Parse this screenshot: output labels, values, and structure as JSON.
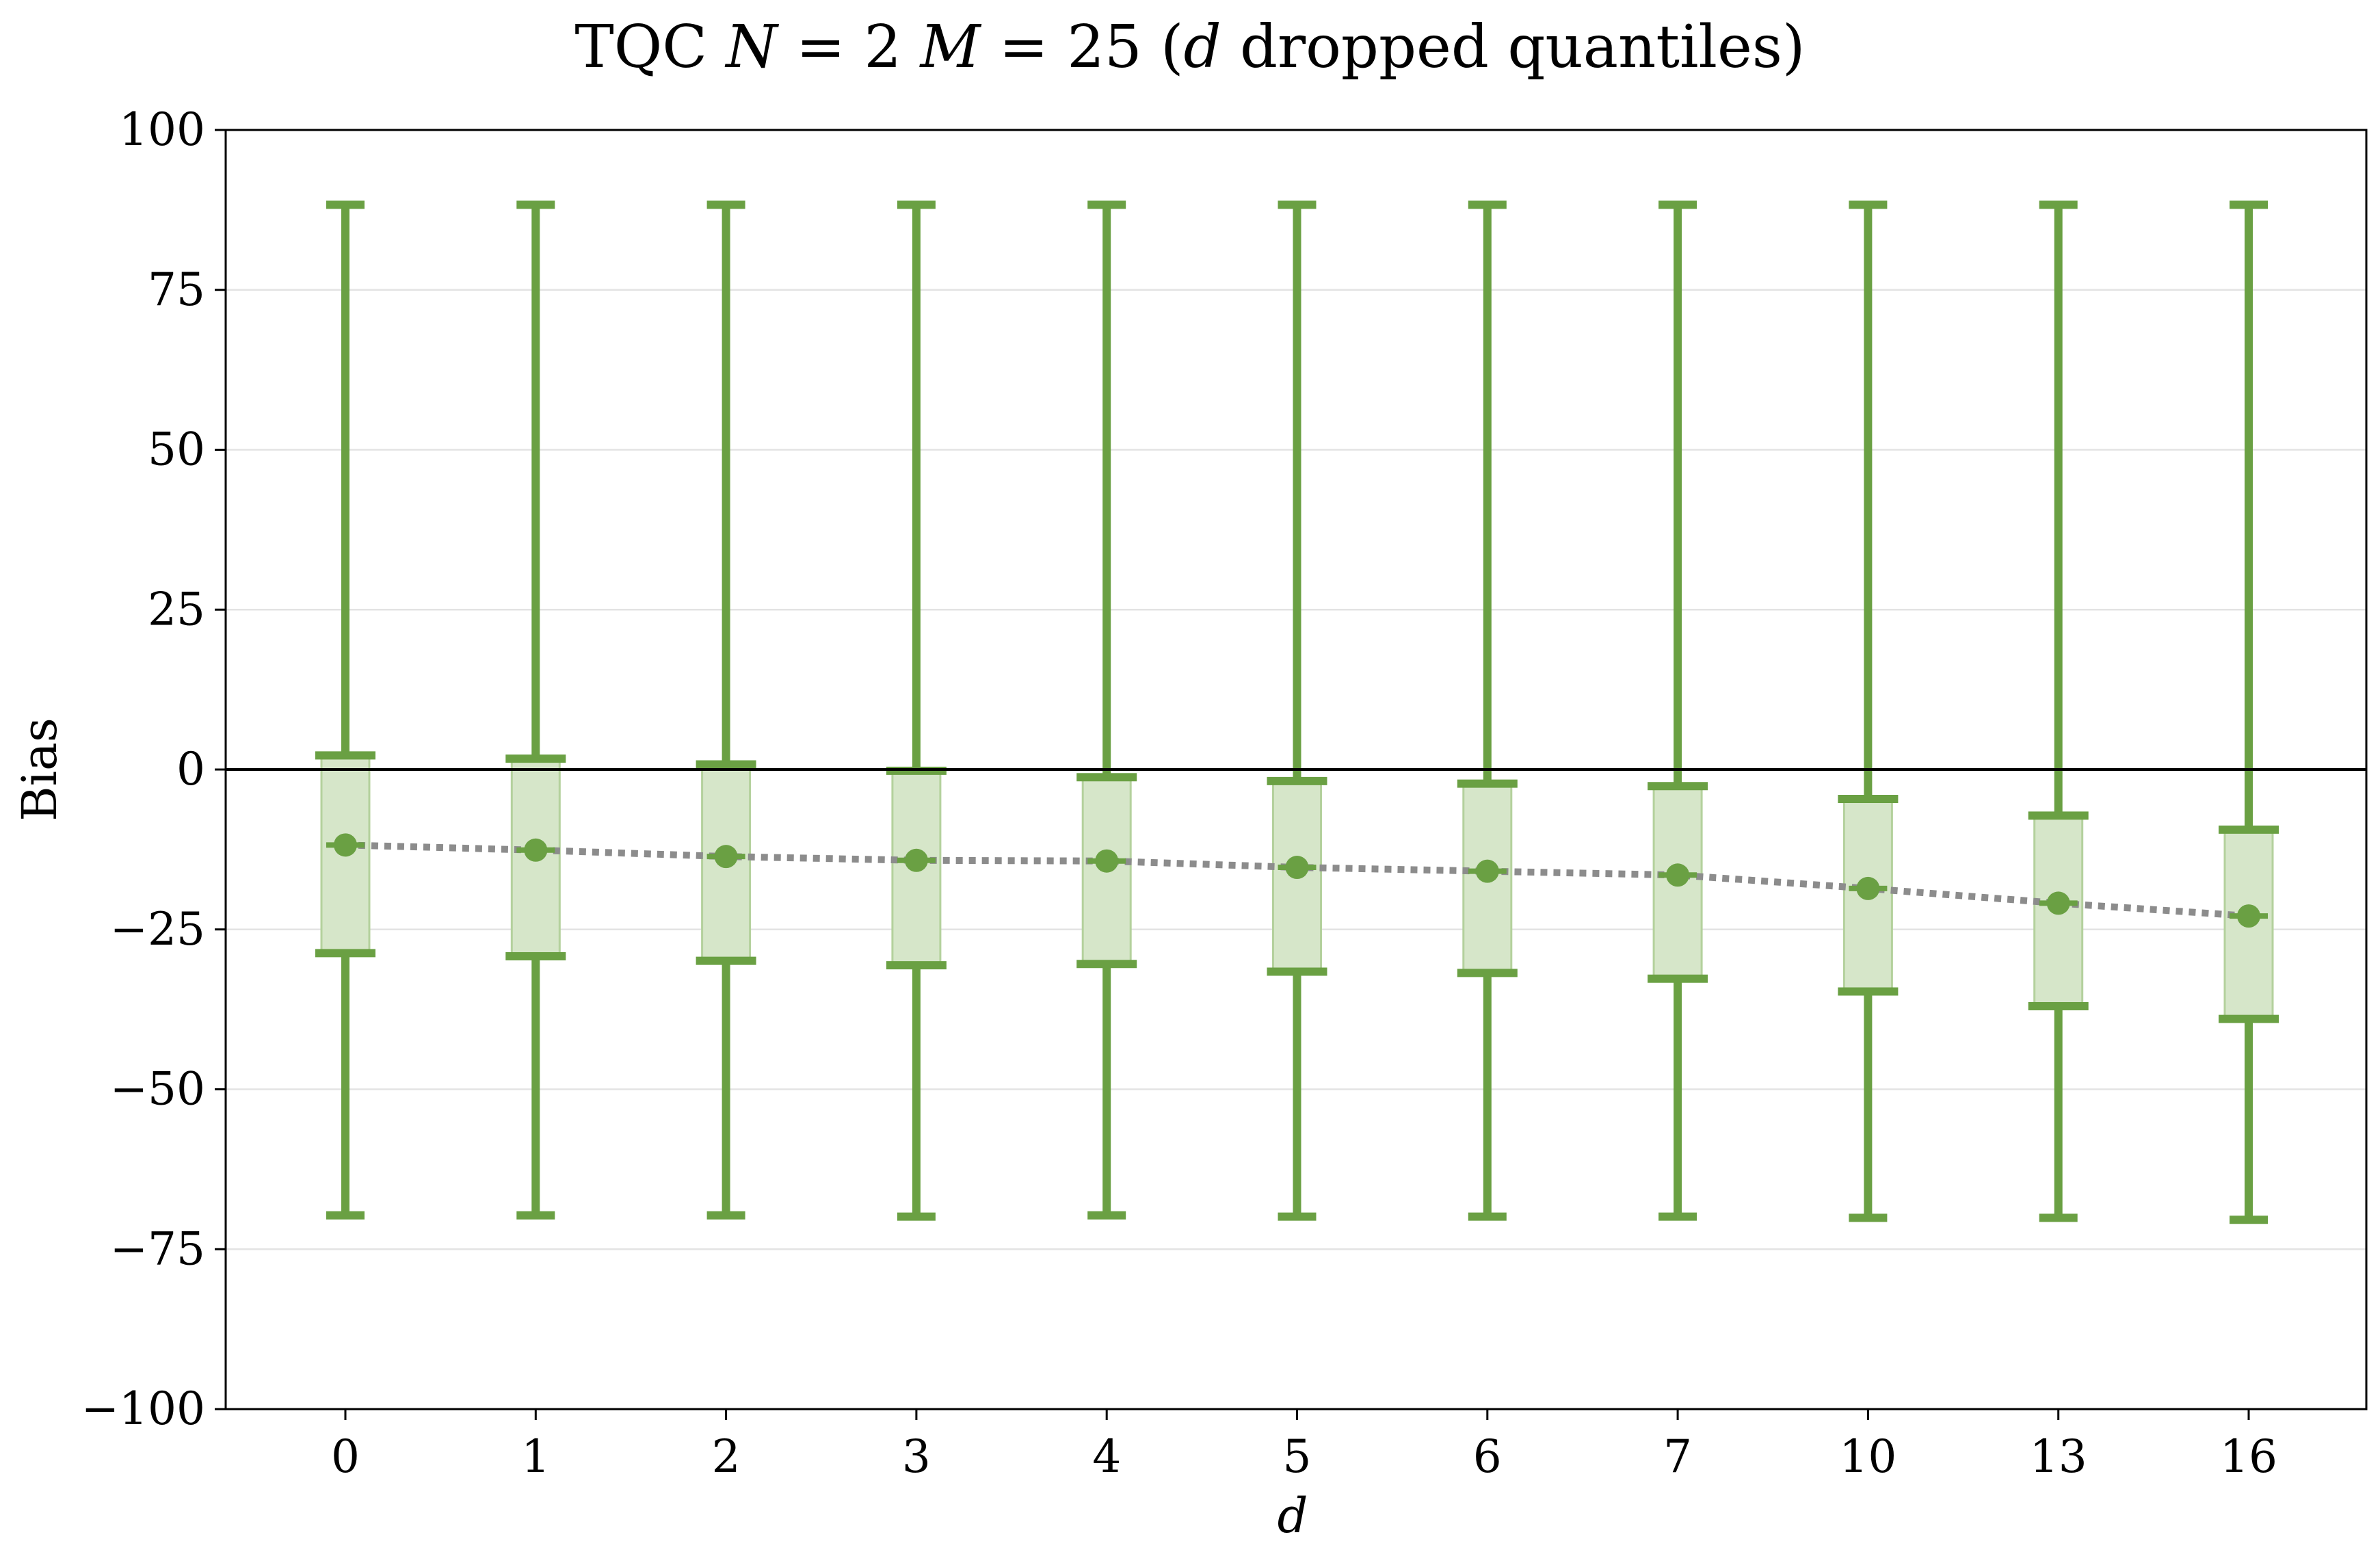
{
  "chart_data": {
    "type": "box",
    "title": "TQC N = 2 M = 25 (d dropped quantiles)",
    "title_parts": {
      "prefix": "TQC ",
      "n_var": "N",
      "n_rest": " = 2 ",
      "m_var": "M",
      "m_rest": " = 25 (",
      "d_var": "d",
      "suffix": " dropped quantiles)"
    },
    "xlabel": "d",
    "ylabel": "Bias",
    "ylim": [
      -100,
      100
    ],
    "yticks": [
      -100,
      -75,
      -50,
      -25,
      0,
      25,
      50,
      75,
      100
    ],
    "ytick_labels": [
      "−100",
      "−75",
      "−50",
      "−25",
      "0",
      "25",
      "50",
      "75",
      "100"
    ],
    "categories": [
      "0",
      "1",
      "2",
      "3",
      "4",
      "5",
      "6",
      "7",
      "10",
      "13",
      "16"
    ],
    "series": [
      {
        "mean": [
          -11.8,
          -12.6,
          -13.6,
          -14.2,
          -14.3,
          -15.3,
          -15.9,
          -16.5,
          -18.6,
          -20.9,
          -22.9
        ],
        "box_upper": [
          2.2,
          1.7,
          0.8,
          -0.2,
          -1.2,
          -1.8,
          -2.2,
          -2.6,
          -4.6,
          -7.2,
          -9.4
        ],
        "box_lower": [
          -28.7,
          -29.2,
          -29.9,
          -30.6,
          -30.4,
          -31.6,
          -31.8,
          -32.7,
          -34.7,
          -37.0,
          -39.0
        ],
        "whisker_upper": [
          88.3,
          88.3,
          88.3,
          88.3,
          88.3,
          88.3,
          88.3,
          88.3,
          88.3,
          88.3,
          88.3
        ],
        "whisker_lower": [
          -69.7,
          -69.7,
          -69.7,
          -69.9,
          -69.7,
          -69.9,
          -69.9,
          -69.9,
          -70.1,
          -70.1,
          -70.4
        ]
      }
    ],
    "reference_line": 0,
    "grid": "horizontal",
    "colors": {
      "marker": "#6aa043",
      "box_fill": "#d6e6c9",
      "box_edge": "#b4d19d",
      "mean_line": "#8c8c8c",
      "grid": "#e3e3e3",
      "axis": "#000000"
    }
  }
}
